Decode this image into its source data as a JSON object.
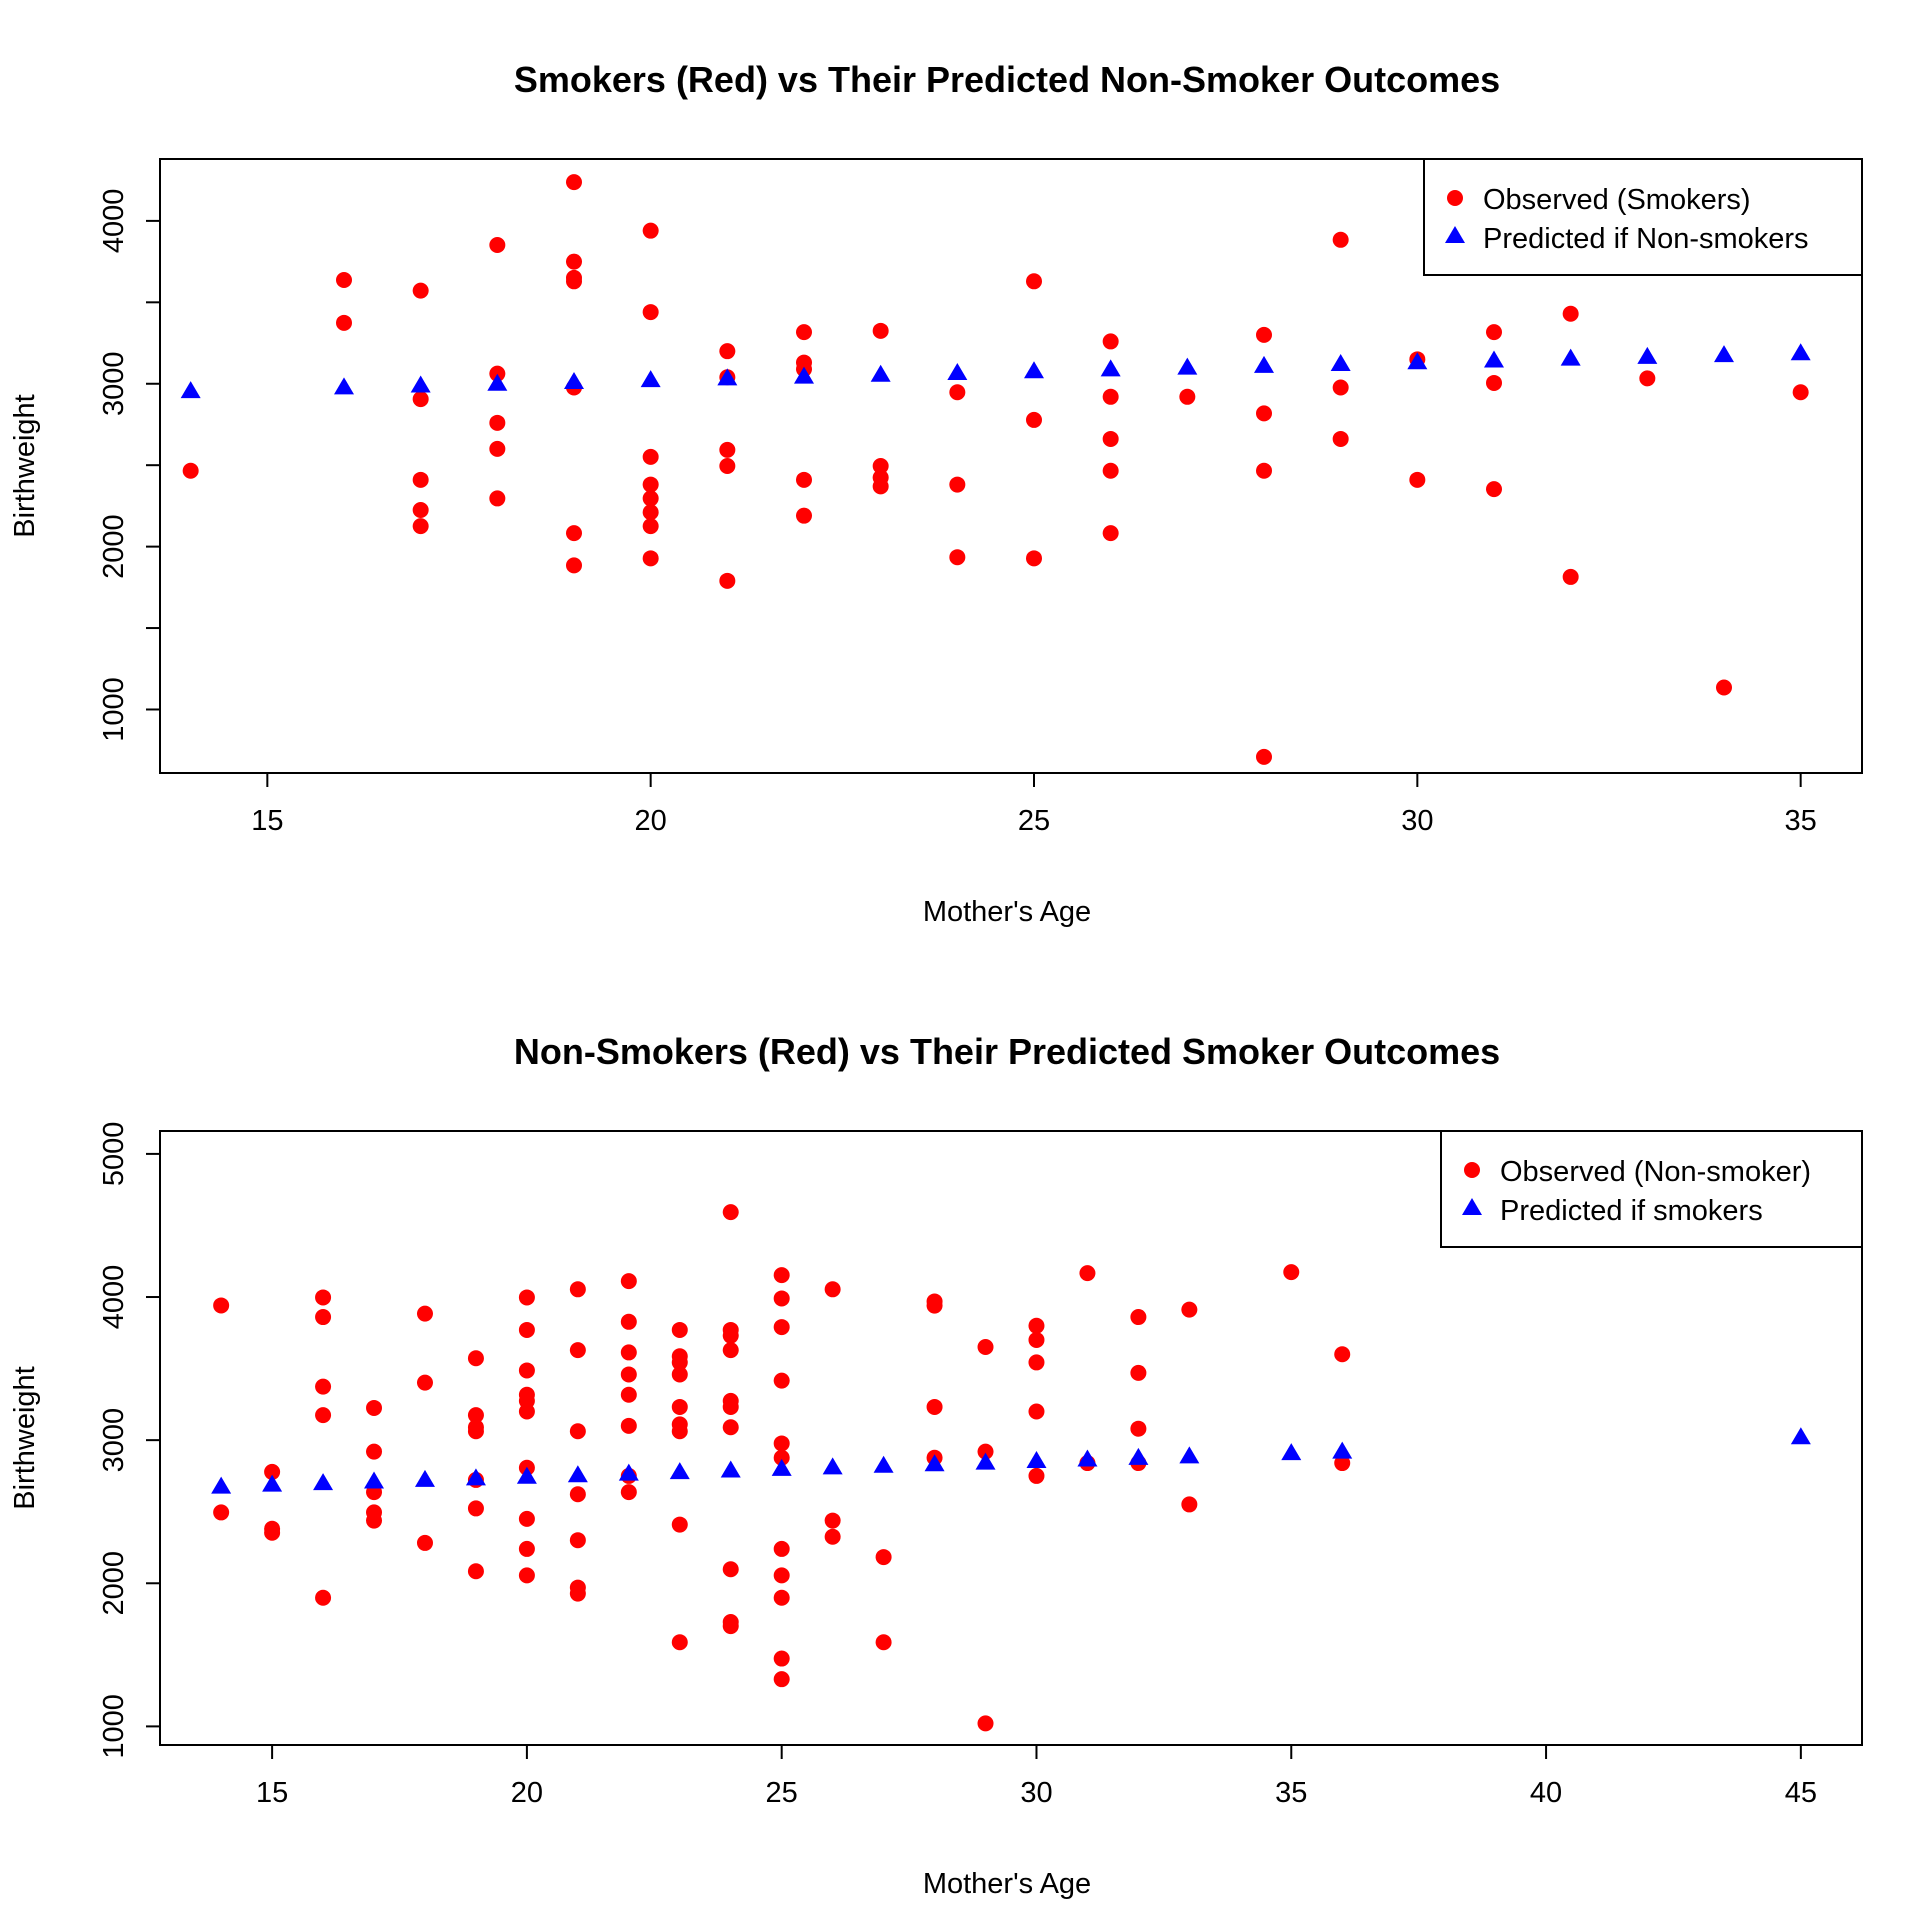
{
  "chart_data": [
    {
      "type": "scatter",
      "title": "Smokers (Red) vs Their Predicted Non-Smoker Outcomes",
      "xlabel": "Mother's Age",
      "ylabel": "Birthweight",
      "xlim": [
        13.6,
        35.8
      ],
      "ylim": [
        610,
        4380
      ],
      "xticks": [
        15,
        20,
        25,
        30,
        35
      ],
      "yticks": [
        1000,
        1500,
        2000,
        2500,
        3000,
        3500,
        4000
      ],
      "ytick_labels": [
        "1000",
        "",
        "2000",
        "",
        "3000",
        "",
        "4000"
      ],
      "grid": false,
      "legend_position": "top-right",
      "series": [
        {
          "name": "Observed (Smokers)",
          "marker": "circle",
          "color": "#ff0000",
          "points": [
            [
              14,
              2466
            ],
            [
              16,
              3374
            ],
            [
              16,
              3637
            ],
            [
              17,
              3572
            ],
            [
              17,
              2906
            ],
            [
              17,
              2410
            ],
            [
              17,
              2225
            ],
            [
              17,
              2126
            ],
            [
              18,
              3852
            ],
            [
              18,
              3062
            ],
            [
              18,
              2760
            ],
            [
              18,
              2600
            ],
            [
              18,
              2296
            ],
            [
              19,
              4238
            ],
            [
              19,
              3750
            ],
            [
              19,
              3650
            ],
            [
              19,
              3629
            ],
            [
              19,
              2977
            ],
            [
              19,
              2083
            ],
            [
              19,
              1885
            ],
            [
              20,
              3940
            ],
            [
              20,
              3440
            ],
            [
              20,
              2551
            ],
            [
              20,
              2381
            ],
            [
              20,
              2296
            ],
            [
              20,
              2211
            ],
            [
              20,
              2126
            ],
            [
              20,
              1928
            ],
            [
              21,
              3200
            ],
            [
              21,
              3040
            ],
            [
              21,
              2594
            ],
            [
              21,
              2495
            ],
            [
              21,
              1790
            ],
            [
              22,
              3317
            ],
            [
              22,
              3130
            ],
            [
              22,
              3090
            ],
            [
              22,
              2410
            ],
            [
              22,
              2190
            ],
            [
              23,
              3325
            ],
            [
              23,
              2495
            ],
            [
              23,
              2424
            ],
            [
              23,
              2370
            ],
            [
              24,
              2948
            ],
            [
              24,
              2381
            ],
            [
              24,
              1935
            ],
            [
              25,
              3629
            ],
            [
              25,
              2778
            ],
            [
              25,
              1928
            ],
            [
              26,
              3260
            ],
            [
              26,
              2920
            ],
            [
              26,
              2661
            ],
            [
              26,
              2466
            ],
            [
              26,
              2083
            ],
            [
              27,
              2920
            ],
            [
              28,
              3300
            ],
            [
              28,
              2818
            ],
            [
              28,
              2466
            ],
            [
              28,
              709
            ],
            [
              29,
              3884
            ],
            [
              29,
              2977
            ],
            [
              29,
              2661
            ],
            [
              30,
              3150
            ],
            [
              30,
              2410
            ],
            [
              31,
              3317
            ],
            [
              31,
              3005
            ],
            [
              31,
              2353
            ],
            [
              32,
              3430
            ],
            [
              32,
              1814
            ],
            [
              33,
              3033
            ],
            [
              34,
              1135
            ],
            [
              35,
              2948
            ]
          ]
        },
        {
          "name": "Predicted if Non-smokers",
          "marker": "triangle",
          "color": "#0000ff",
          "points": [
            [
              14,
              2955
            ],
            [
              16,
              2978
            ],
            [
              17,
              2989
            ],
            [
              18,
              3000
            ],
            [
              19,
              3011
            ],
            [
              20,
              3022
            ],
            [
              21,
              3033
            ],
            [
              22,
              3044
            ],
            [
              23,
              3055
            ],
            [
              24,
              3066
            ],
            [
              25,
              3077
            ],
            [
              26,
              3088
            ],
            [
              27,
              3099
            ],
            [
              28,
              3110
            ],
            [
              29,
              3121
            ],
            [
              30,
              3132
            ],
            [
              31,
              3143
            ],
            [
              32,
              3154
            ],
            [
              33,
              3165
            ],
            [
              34,
              3176
            ],
            [
              35,
              3187
            ]
          ]
        }
      ]
    },
    {
      "type": "scatter",
      "title": "Non-Smokers (Red) vs Their Predicted Smoker Outcomes",
      "xlabel": "Mother's Age",
      "ylabel": "Birthweight",
      "xlim": [
        12.8,
        46.2
      ],
      "ylim": [
        870,
        5160
      ],
      "xticks": [
        15,
        20,
        25,
        30,
        35,
        40,
        45
      ],
      "yticks": [
        1000,
        2000,
        3000,
        4000,
        5000
      ],
      "ytick_labels": [
        "1000",
        "2000",
        "3000",
        "4000",
        "5000"
      ],
      "grid": false,
      "legend_position": "top-right",
      "series": [
        {
          "name": "Observed (Non-smoker)",
          "marker": "circle",
          "color": "#ff0000",
          "points": [
            [
              14,
              3941
            ],
            [
              14,
              2495
            ],
            [
              15,
              2778
            ],
            [
              15,
              2381
            ],
            [
              15,
              2353
            ],
            [
              16,
              3997
            ],
            [
              16,
              3860
            ],
            [
              16,
              3374
            ],
            [
              16,
              3175
            ],
            [
              16,
              1899
            ],
            [
              17,
              3225
            ],
            [
              17,
              2920
            ],
            [
              17,
              2637
            ],
            [
              17,
              2495
            ],
            [
              17,
              2438
            ],
            [
              18,
              3884
            ],
            [
              18,
              3402
            ],
            [
              18,
              2282
            ],
            [
              19,
              3572
            ],
            [
              19,
              3175
            ],
            [
              19,
              3090
            ],
            [
              19,
              3062
            ],
            [
              19,
              2722
            ],
            [
              19,
              2523
            ],
            [
              19,
              2084
            ],
            [
              20,
              3997
            ],
            [
              20,
              3770
            ],
            [
              20,
              3487
            ],
            [
              20,
              3317
            ],
            [
              20,
              3274
            ],
            [
              20,
              3200
            ],
            [
              20,
              2807
            ],
            [
              20,
              2450
            ],
            [
              20,
              2240
            ],
            [
              20,
              2055
            ],
            [
              21,
              4054
            ],
            [
              21,
              3629
            ],
            [
              21,
              3062
            ],
            [
              21,
              2622
            ],
            [
              21,
              2301
            ],
            [
              21,
              1970
            ],
            [
              21,
              1928
            ],
            [
              22,
              4111
            ],
            [
              22,
              3827
            ],
            [
              22,
              3613
            ],
            [
              22,
              3459
            ],
            [
              22,
              3317
            ],
            [
              22,
              3100
            ],
            [
              22,
              2750
            ],
            [
              22,
              2637
            ],
            [
              23,
              3770
            ],
            [
              23,
              3586
            ],
            [
              23,
              3543
            ],
            [
              23,
              3459
            ],
            [
              23,
              3232
            ],
            [
              23,
              3110
            ],
            [
              23,
              3062
            ],
            [
              23,
              2410
            ],
            [
              23,
              1588
            ],
            [
              24,
              4593
            ],
            [
              24,
              3770
            ],
            [
              24,
              3730
            ],
            [
              24,
              3629
            ],
            [
              24,
              3274
            ],
            [
              24,
              3232
            ],
            [
              24,
              3090
            ],
            [
              24,
              2098
            ],
            [
              24,
              1729
            ],
            [
              24,
              1701
            ],
            [
              25,
              4153
            ],
            [
              25,
              3990
            ],
            [
              25,
              3790
            ],
            [
              25,
              3416
            ],
            [
              25,
              2977
            ],
            [
              25,
              2877
            ],
            [
              25,
              2240
            ],
            [
              25,
              2055
            ],
            [
              25,
              1899
            ],
            [
              25,
              1474
            ],
            [
              25,
              1330
            ],
            [
              26,
              4054
            ],
            [
              26,
              2438
            ],
            [
              26,
              2325
            ],
            [
              27,
              2183
            ],
            [
              27,
              1588
            ],
            [
              28,
              3969
            ],
            [
              28,
              3940
            ],
            [
              28,
              3232
            ],
            [
              28,
              2877
            ],
            [
              29,
              3651
            ],
            [
              29,
              2920
            ],
            [
              29,
              1021
            ],
            [
              30,
              3799
            ],
            [
              30,
              3700
            ],
            [
              30,
              3543
            ],
            [
              30,
              3200
            ],
            [
              30,
              2750
            ],
            [
              31,
              4167
            ],
            [
              31,
              2840
            ],
            [
              32,
              3860
            ],
            [
              32,
              3470
            ],
            [
              32,
              3080
            ],
            [
              32,
              2840
            ],
            [
              33,
              3912
            ],
            [
              33,
              2551
            ],
            [
              35,
              4174
            ],
            [
              36,
              3600
            ],
            [
              36,
              2840
            ]
          ]
        },
        {
          "name": "Predicted if smokers",
          "marker": "triangle",
          "color": "#0000ff",
          "points": [
            [
              14,
              2675
            ],
            [
              15,
              2689
            ],
            [
              16,
              2700
            ],
            [
              17,
              2711
            ],
            [
              18,
              2722
            ],
            [
              19,
              2733
            ],
            [
              20,
              2744
            ],
            [
              21,
              2755
            ],
            [
              22,
              2766
            ],
            [
              23,
              2777
            ],
            [
              24,
              2788
            ],
            [
              25,
              2799
            ],
            [
              26,
              2810
            ],
            [
              27,
              2821
            ],
            [
              28,
              2832
            ],
            [
              29,
              2843
            ],
            [
              30,
              2854
            ],
            [
              31,
              2865
            ],
            [
              32,
              2876
            ],
            [
              33,
              2887
            ],
            [
              35,
              2909
            ],
            [
              36,
              2920
            ],
            [
              45,
              3020
            ]
          ]
        }
      ]
    }
  ]
}
